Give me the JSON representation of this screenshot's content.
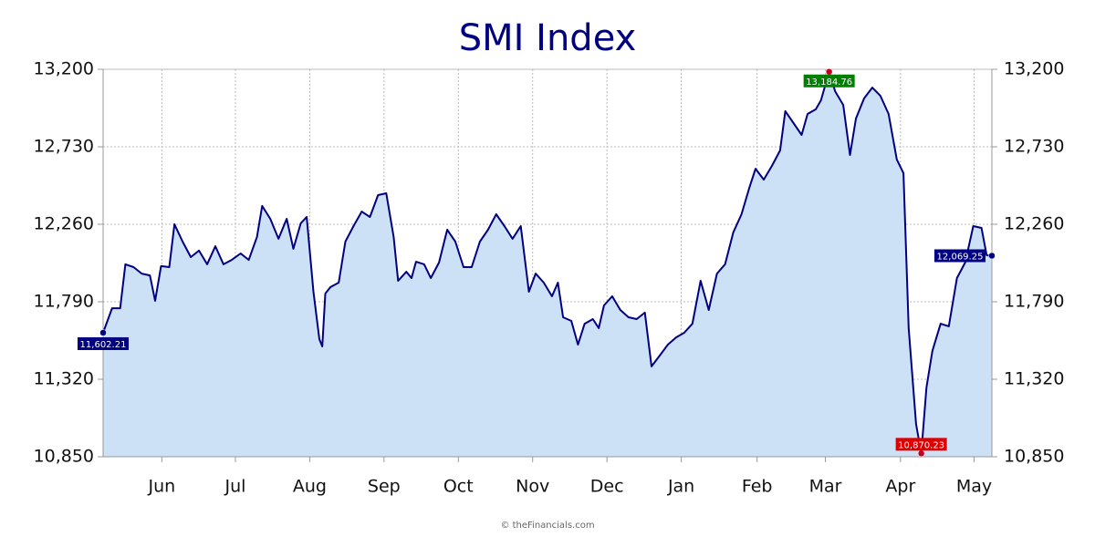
{
  "chart_data": {
    "type": "area",
    "title": "SMI Index",
    "source": "© theFinancials.com",
    "color": "#000080",
    "fill_color": "#cce0f6",
    "grid": true,
    "x": [
      5.21,
      5.33,
      5.44,
      5.51,
      5.62,
      5.73,
      5.84,
      5.91,
      5.99,
      6.1,
      6.17,
      6.28,
      6.39,
      6.5,
      6.61,
      6.72,
      6.83,
      6.94,
      7.06,
      7.17,
      7.28,
      7.35,
      7.46,
      7.57,
      7.68,
      7.77,
      7.87,
      7.95,
      8.04,
      8.12,
      8.16,
      8.2,
      8.27,
      8.38,
      8.47,
      8.58,
      8.69,
      8.8,
      8.91,
      9.02,
      9.12,
      9.18,
      9.29,
      9.36,
      9.42,
      9.53,
      9.62,
      9.73,
      9.84,
      9.95,
      10.06,
      10.17,
      10.28,
      10.39,
      10.5,
      10.61,
      10.72,
      10.83,
      10.94,
      11.03,
      11.14,
      11.25,
      11.33,
      11.4,
      11.51,
      11.6,
      11.69,
      11.8,
      11.88,
      11.95,
      12.06,
      12.17,
      12.28,
      12.39,
      12.5,
      12.59,
      12.7,
      12.81,
      12.92,
      13.03,
      13.14,
      13.25,
      13.36,
      13.47,
      13.58,
      13.69,
      13.8,
      13.91,
      13.99,
      14.1,
      14.21,
      14.32,
      14.39,
      14.5,
      14.61,
      14.69,
      14.8,
      14.87,
      14.94,
      14.98,
      15.06,
      15.17,
      15.26,
      15.34,
      15.45,
      15.56,
      15.67,
      15.78,
      15.89,
      15.98,
      16.05,
      16.15,
      16.22,
      16.29,
      16.37,
      16.48,
      16.59,
      16.7,
      16.81,
      16.92,
      17.03,
      17.1,
      17.17
    ],
    "values": [
      11602.21,
      11751,
      11751,
      12017,
      12000,
      11961,
      11950,
      11796,
      12006,
      12000,
      12260,
      12155,
      12061,
      12100,
      12017,
      12127,
      12017,
      12044,
      12083,
      12044,
      12183,
      12371,
      12293,
      12172,
      12293,
      12111,
      12266,
      12304,
      11851,
      11563,
      11519,
      11840,
      11879,
      11906,
      12155,
      12249,
      12337,
      12304,
      12437,
      12448,
      12183,
      11917,
      11972,
      11934,
      12033,
      12017,
      11934,
      12028,
      12227,
      12155,
      12000,
      12000,
      12155,
      12227,
      12321,
      12249,
      12172,
      12249,
      11851,
      11961,
      11906,
      11823,
      11906,
      11696,
      11674,
      11530,
      11657,
      11685,
      11630,
      11768,
      11823,
      11740,
      11696,
      11685,
      11724,
      11398,
      11464,
      11530,
      11574,
      11602,
      11657,
      11917,
      11740,
      11961,
      12017,
      12211,
      12321,
      12487,
      12597,
      12531,
      12614,
      12708,
      12946,
      12874,
      12802,
      12929,
      12957,
      13012,
      13123,
      13184.76,
      13067,
      12984,
      12680,
      12901,
      13023,
      13089,
      13039,
      12929,
      12653,
      12570,
      11630,
      11049,
      10870.23,
      11270,
      11492,
      11657,
      11641,
      11934,
      12028,
      12249,
      12238,
      12072,
      12069.25
    ],
    "value_labels": [
      "11,602.21",
      null,
      null,
      null,
      null,
      null,
      null,
      null,
      null,
      null,
      null,
      null,
      null,
      null,
      null,
      null,
      null,
      null,
      null,
      null,
      null,
      null,
      null,
      null,
      null,
      null,
      null,
      null,
      null,
      null,
      null,
      null,
      null,
      null,
      null,
      null,
      null,
      null,
      null,
      null,
      null,
      null,
      null,
      null,
      null,
      null,
      null,
      null,
      null,
      null,
      null,
      null,
      null,
      null,
      null,
      null,
      null,
      null,
      null,
      null,
      null,
      null,
      null,
      null,
      null,
      null,
      null,
      null,
      null,
      null,
      null,
      null,
      null,
      null,
      null,
      null,
      null,
      null,
      null,
      null,
      null,
      null,
      null,
      null,
      null,
      null,
      null,
      null,
      null,
      null,
      null,
      null,
      null,
      null,
      null,
      null,
      null,
      null,
      null,
      "13,184.76",
      null,
      null,
      null,
      null,
      null,
      null,
      null,
      null,
      null,
      null,
      null,
      null,
      "10,870.23",
      null,
      null,
      null,
      null,
      null,
      null,
      null,
      null,
      null,
      "12,069.25"
    ],
    "xlim": [
      5.21,
      17.17
    ],
    "xticks": [
      {
        "value": 6,
        "label": "Jun"
      },
      {
        "value": 6.99,
        "label": "Jul"
      },
      {
        "value": 7.99,
        "label": "Aug"
      },
      {
        "value": 8.99,
        "label": "Sep"
      },
      {
        "value": 9.99,
        "label": "Oct"
      },
      {
        "value": 10.99,
        "label": "Nov"
      },
      {
        "value": 11.99,
        "label": "Dec"
      },
      {
        "value": 12.99,
        "label": "Jan"
      },
      {
        "value": 14.01,
        "label": "Feb"
      },
      {
        "value": 14.93,
        "label": "Mar"
      },
      {
        "value": 15.94,
        "label": "Apr"
      },
      {
        "value": 16.93,
        "label": "May"
      }
    ],
    "ylim": [
      10850,
      13200
    ],
    "yticks": [
      {
        "value": 10850,
        "label": "10,850"
      },
      {
        "value": 11320,
        "label": "11,320"
      },
      {
        "value": 11790,
        "label": "11,790"
      },
      {
        "value": 12260,
        "label": "12,260"
      },
      {
        "value": 12730,
        "label": "12,730"
      },
      {
        "value": 13200,
        "label": "13,200"
      }
    ]
  }
}
